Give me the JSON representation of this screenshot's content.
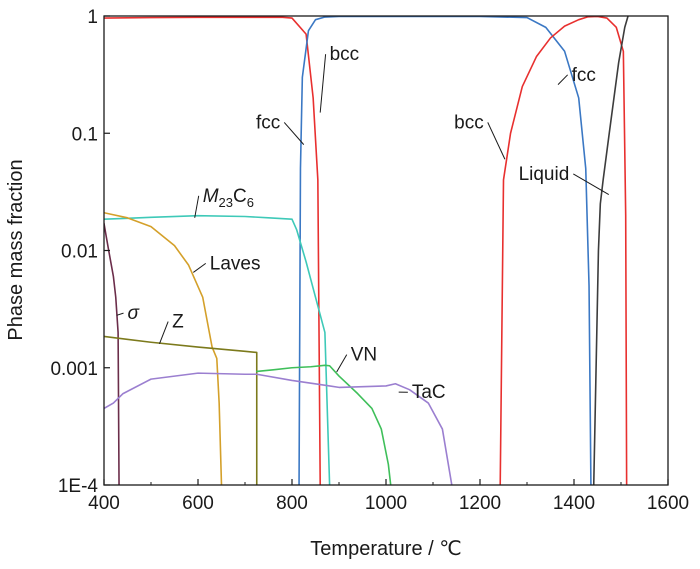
{
  "chart_data": {
    "type": "line",
    "title": "",
    "xlabel": "Temperature / ℃",
    "ylabel": "Phase mass fraction",
    "xscale": "linear",
    "yscale": "log",
    "xlim": [
      400,
      1600
    ],
    "ylim": [
      0.0001,
      1
    ],
    "grid": false,
    "legend": "none",
    "x_ticks": [
      {
        "value": 400,
        "label": "400"
      },
      {
        "value": 600,
        "label": "600"
      },
      {
        "value": 800,
        "label": "800"
      },
      {
        "value": 1000,
        "label": "1000"
      },
      {
        "value": 1200,
        "label": "1200"
      },
      {
        "value": 1400,
        "label": "1400"
      },
      {
        "value": 1600,
        "label": "1600"
      }
    ],
    "y_ticks": [
      {
        "value": 1,
        "label": "1"
      },
      {
        "value": 0.1,
        "label": "0.1"
      },
      {
        "value": 0.01,
        "label": "0.01"
      },
      {
        "value": 0.001,
        "label": "0.001"
      },
      {
        "value": 0.0001,
        "label": "1E-4"
      }
    ],
    "series": [
      {
        "key": "fcc-low",
        "color": "#e8302f",
        "x": [
          400,
          450,
          500,
          600,
          700,
          780,
          800,
          830,
          845,
          855,
          860
        ],
        "y": [
          0.96,
          0.965,
          0.97,
          0.975,
          0.975,
          0.975,
          0.96,
          0.7,
          0.2,
          0.04,
          0.0001
        ]
      },
      {
        "key": "bcc-low",
        "color": "#3b78c4",
        "x": [
          815,
          818,
          822,
          835,
          850,
          870,
          900,
          1000,
          1100,
          1200,
          1300,
          1340,
          1380,
          1410,
          1425,
          1432,
          1436
        ],
        "y": [
          0.0001,
          0.05,
          0.3,
          0.75,
          0.93,
          0.98,
          0.99,
          0.99,
          0.99,
          0.99,
          0.97,
          0.8,
          0.5,
          0.2,
          0.05,
          0.005,
          0.0001
        ]
      },
      {
        "key": "bcc-high",
        "color": "#e8302f",
        "x": [
          1243,
          1250,
          1265,
          1290,
          1320,
          1350,
          1380,
          1410,
          1430,
          1450,
          1470,
          1490,
          1505,
          1510,
          1512
        ],
        "y": [
          0.0001,
          0.04,
          0.1,
          0.25,
          0.45,
          0.65,
          0.82,
          0.93,
          0.985,
          0.99,
          0.96,
          0.8,
          0.5,
          0.02,
          0.0001
        ]
      },
      {
        "key": "liquid",
        "color": "#3c3c3c",
        "x": [
          1442,
          1452,
          1456,
          1462,
          1475,
          1495,
          1508,
          1515
        ],
        "y": [
          0.0001,
          0.01,
          0.025,
          0.04,
          0.1,
          0.4,
          0.8,
          1
        ]
      },
      {
        "key": "m23c6",
        "color": "#3ec9b8",
        "x": [
          400,
          450,
          500,
          600,
          700,
          750,
          800,
          810,
          830,
          850,
          870,
          880
        ],
        "y": [
          0.0185,
          0.0188,
          0.0192,
          0.0198,
          0.0195,
          0.019,
          0.0185,
          0.015,
          0.008,
          0.004,
          0.002,
          0.0001
        ]
      },
      {
        "key": "laves",
        "color": "#d4a02a",
        "x": [
          400,
          450,
          500,
          550,
          580,
          610,
          630,
          640,
          645,
          650
        ],
        "y": [
          0.021,
          0.019,
          0.016,
          0.011,
          0.0075,
          0.004,
          0.0015,
          0.0012,
          0.0005,
          0.0001
        ]
      },
      {
        "key": "sigma",
        "color": "#6b2d4a",
        "x": [
          400,
          405,
          410,
          420,
          425,
          430,
          432
        ],
        "y": [
          0.017,
          0.013,
          0.01,
          0.006,
          0.004,
          0.002,
          0.0001
        ]
      },
      {
        "key": "z",
        "color": "#7c7a1c",
        "x": [
          400,
          500,
          600,
          700,
          725,
          725
        ],
        "y": [
          0.00185,
          0.00165,
          0.0015,
          0.00138,
          0.00135,
          0.0001
        ]
      },
      {
        "key": "vn",
        "color": "#3fbf5a",
        "x": [
          725,
          760,
          800,
          840,
          870,
          880,
          900,
          940,
          970,
          990,
          1005,
          1010
        ],
        "y": [
          0.00093,
          0.00096,
          0.001,
          0.00102,
          0.00105,
          0.00104,
          0.00085,
          0.0006,
          0.00045,
          0.0003,
          0.00015,
          0.0001
        ]
      },
      {
        "key": "tac",
        "color": "#9b7fd0",
        "x": [
          400,
          420,
          440,
          500,
          600,
          700,
          725,
          800,
          880,
          900,
          1000,
          1020,
          1050,
          1090,
          1120,
          1140
        ],
        "y": [
          0.00045,
          0.0005,
          0.0006,
          0.0008,
          0.0009,
          0.00088,
          0.00088,
          0.00078,
          0.0007,
          0.00068,
          0.0007,
          0.00073,
          0.00065,
          0.0005,
          0.0003,
          0.0001
        ]
      }
    ],
    "annotations": [
      {
        "key": "bcc-a",
        "text": "bcc",
        "color": "#e8302f",
        "ax": 860,
        "ay": 0.15,
        "tx": 880,
        "ty": 0.42
      },
      {
        "key": "fcc-a",
        "text": "fcc",
        "color": "#3b78c4",
        "ax": 825,
        "ay": 0.08,
        "tx": 775,
        "ty": 0.11
      },
      {
        "key": "bcc-b",
        "text": "bcc",
        "color": "#e8302f",
        "ax": 1253,
        "ay": 0.06,
        "tx": 1208,
        "ty": 0.11
      },
      {
        "key": "fcc-b",
        "text": "fcc",
        "color": "#3b78c4",
        "ax": 1366,
        "ay": 0.26,
        "tx": 1395,
        "ty": 0.28
      },
      {
        "key": "liquid-a",
        "text": "Liquid",
        "color": "#3c3c3c",
        "ax": 1474,
        "ay": 0.03,
        "tx": 1390,
        "ty": 0.04
      },
      {
        "key": "m23c6-a",
        "text": "M23C6",
        "color": "#3ec9b8",
        "ax": 593,
        "ay": 0.019,
        "tx": 610,
        "ty": 0.026
      },
      {
        "key": "laves-a",
        "text": "Laves",
        "color": "#d4a02a",
        "ax": 590,
        "ay": 0.0065,
        "tx": 625,
        "ty": 0.0069
      },
      {
        "key": "sigma-a",
        "text": "σ",
        "color": "#6b2d4a",
        "ax": 427,
        "ay": 0.0028,
        "tx": 450,
        "ty": 0.0026
      },
      {
        "key": "z-a",
        "text": "Z",
        "color": "#7c7a1c",
        "ax": 518,
        "ay": 0.0016,
        "tx": 545,
        "ty": 0.0022
      },
      {
        "key": "vn-a",
        "text": "VN",
        "color": "#3fbf5a",
        "ax": 895,
        "ay": 0.00092,
        "tx": 925,
        "ty": 0.00115
      },
      {
        "key": "tac-a",
        "text": "TaC",
        "color": "#9b7fd0",
        "ax": 1027,
        "ay": 0.00062,
        "tx": 1055,
        "ty": 0.00055
      }
    ]
  }
}
